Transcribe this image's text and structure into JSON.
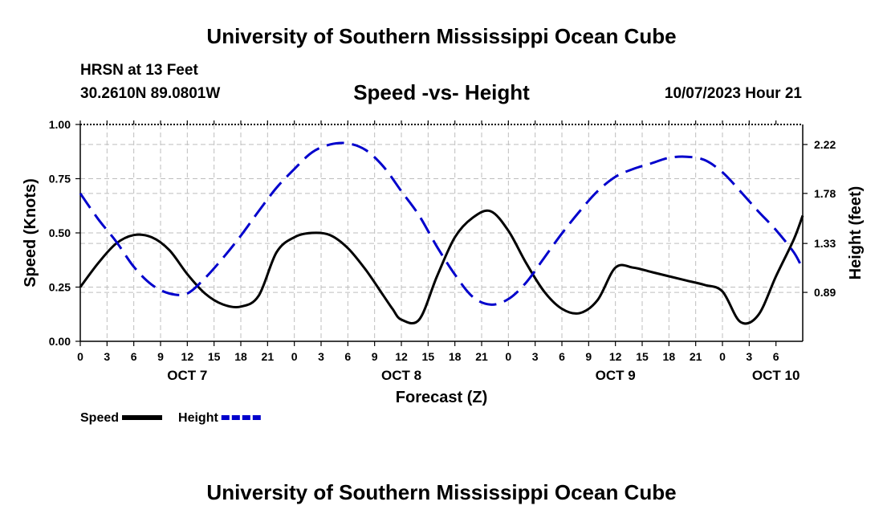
{
  "header": {
    "title": "University of Southern Mississippi Ocean Cube",
    "station": "HRSN at 13 Feet",
    "coords": "30.2610N  89.0801W",
    "subtitle": "Speed -vs- Height",
    "datetime": "10/07/2023 Hour 21"
  },
  "footer": {
    "title": "University of Southern Mississippi Ocean Cube"
  },
  "chart_data": {
    "type": "line",
    "title": "Speed -vs- Height",
    "xlabel": "Forecast (Z)",
    "ylabel_left": "Speed (Knots)",
    "ylabel_right": "Height (feet)",
    "grid": true,
    "x_range": [
      0,
      81
    ],
    "x_tick_labels": [
      "0",
      "3",
      "6",
      "9",
      "12",
      "15",
      "18",
      "21",
      "0",
      "3",
      "6",
      "9",
      "12",
      "15",
      "18",
      "21",
      "0",
      "3",
      "6",
      "9",
      "12",
      "15",
      "18",
      "21",
      "0",
      "3",
      "6"
    ],
    "date_labels": [
      {
        "label": "OCT 7",
        "at_hour": 12
      },
      {
        "label": "OCT 8",
        "at_hour": 36
      },
      {
        "label": "OCT 9",
        "at_hour": 60
      },
      {
        "label": "OCT 10",
        "at_hour": 78
      }
    ],
    "y_left": {
      "range": [
        0,
        1
      ],
      "ticks": [
        0,
        0.25,
        0.5,
        0.75,
        1.0
      ],
      "tick_labels": [
        "0.00",
        "0.25",
        "0.50",
        "0.75",
        "1.00"
      ]
    },
    "y_right": {
      "range": [
        0.45,
        2.4
      ],
      "ticks": [
        0.89,
        1.33,
        1.78,
        2.22
      ],
      "tick_labels": [
        "0.89",
        "1.33",
        "1.78",
        "2.22"
      ]
    },
    "series": [
      {
        "name": "Speed",
        "axis": "left",
        "color": "#000000",
        "dash": "solid",
        "x": [
          0,
          2,
          4,
          6,
          8,
          10,
          12,
          14,
          16,
          18,
          20,
          22,
          24,
          26,
          28,
          30,
          32,
          34,
          35,
          36,
          38,
          40,
          42,
          44,
          46,
          48,
          50,
          52,
          54,
          56,
          58,
          60,
          62,
          64,
          66,
          68,
          70,
          72,
          74,
          76,
          78,
          80,
          81
        ],
        "values": [
          0.25,
          0.36,
          0.45,
          0.49,
          0.48,
          0.42,
          0.31,
          0.22,
          0.17,
          0.16,
          0.21,
          0.41,
          0.48,
          0.5,
          0.49,
          0.43,
          0.33,
          0.21,
          0.15,
          0.1,
          0.1,
          0.3,
          0.48,
          0.57,
          0.6,
          0.51,
          0.36,
          0.23,
          0.15,
          0.13,
          0.19,
          0.34,
          0.34,
          0.32,
          0.3,
          0.28,
          0.26,
          0.23,
          0.09,
          0.12,
          0.3,
          0.47,
          0.58
        ]
      },
      {
        "name": "Height",
        "axis": "right",
        "color": "#0000cc",
        "dash": "dashed",
        "x": [
          0,
          2,
          4,
          6,
          8,
          10,
          12,
          14,
          16,
          18,
          20,
          22,
          24,
          26,
          28,
          30,
          32,
          34,
          36,
          38,
          40,
          42,
          44,
          46,
          48,
          50,
          52,
          54,
          56,
          58,
          60,
          62,
          64,
          66,
          68,
          70,
          72,
          74,
          76,
          78,
          80,
          81
        ],
        "values": [
          1.78,
          1.55,
          1.35,
          1.12,
          0.96,
          0.88,
          0.88,
          1.02,
          1.2,
          1.4,
          1.62,
          1.83,
          2.0,
          2.15,
          2.22,
          2.23,
          2.17,
          2.02,
          1.8,
          1.58,
          1.3,
          1.05,
          0.85,
          0.78,
          0.83,
          0.98,
          1.2,
          1.42,
          1.62,
          1.8,
          1.93,
          2.0,
          2.05,
          2.1,
          2.11,
          2.08,
          1.97,
          1.8,
          1.62,
          1.45,
          1.25,
          1.1
        ]
      }
    ],
    "legend": [
      {
        "label": "Speed",
        "color": "#000000",
        "dash": "solid"
      },
      {
        "label": "Height",
        "color": "#0000cc",
        "dash": "dashed"
      }
    ]
  }
}
